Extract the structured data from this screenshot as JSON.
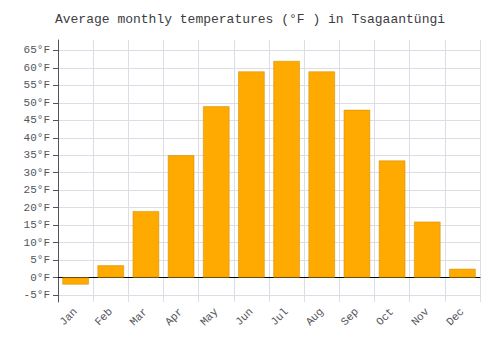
{
  "chart_data": {
    "type": "bar",
    "title": "Average monthly temperatures (°F ) in Tsagaantüngi",
    "categories": [
      "Jan",
      "Feb",
      "Mar",
      "Apr",
      "May",
      "Jun",
      "Jul",
      "Aug",
      "Sep",
      "Oct",
      "Nov",
      "Dec"
    ],
    "values": [
      -2.0,
      3.5,
      19.0,
      35.0,
      49.0,
      59.0,
      62.0,
      59.0,
      48.0,
      33.5,
      16.0,
      2.5
    ],
    "color": "#FFAA00",
    "ylim": [
      -7,
      68
    ],
    "yticks": [
      {
        "value": -5,
        "label": "-5°F"
      },
      {
        "value": 0,
        "label": "0°F"
      },
      {
        "value": 5,
        "label": "5°F"
      },
      {
        "value": 10,
        "label": "10°F"
      },
      {
        "value": 15,
        "label": "15°F"
      },
      {
        "value": 20,
        "label": "20°F"
      },
      {
        "value": 25,
        "label": "25°F"
      },
      {
        "value": 30,
        "label": "30°F"
      },
      {
        "value": 35,
        "label": "35°F"
      },
      {
        "value": 40,
        "label": "40°F"
      },
      {
        "value": 45,
        "label": "45°F"
      },
      {
        "value": 50,
        "label": "50°F"
      },
      {
        "value": 55,
        "label": "55°F"
      },
      {
        "value": 60,
        "label": "60°F"
      },
      {
        "value": 65,
        "label": "65°F"
      }
    ],
    "grid": true
  }
}
